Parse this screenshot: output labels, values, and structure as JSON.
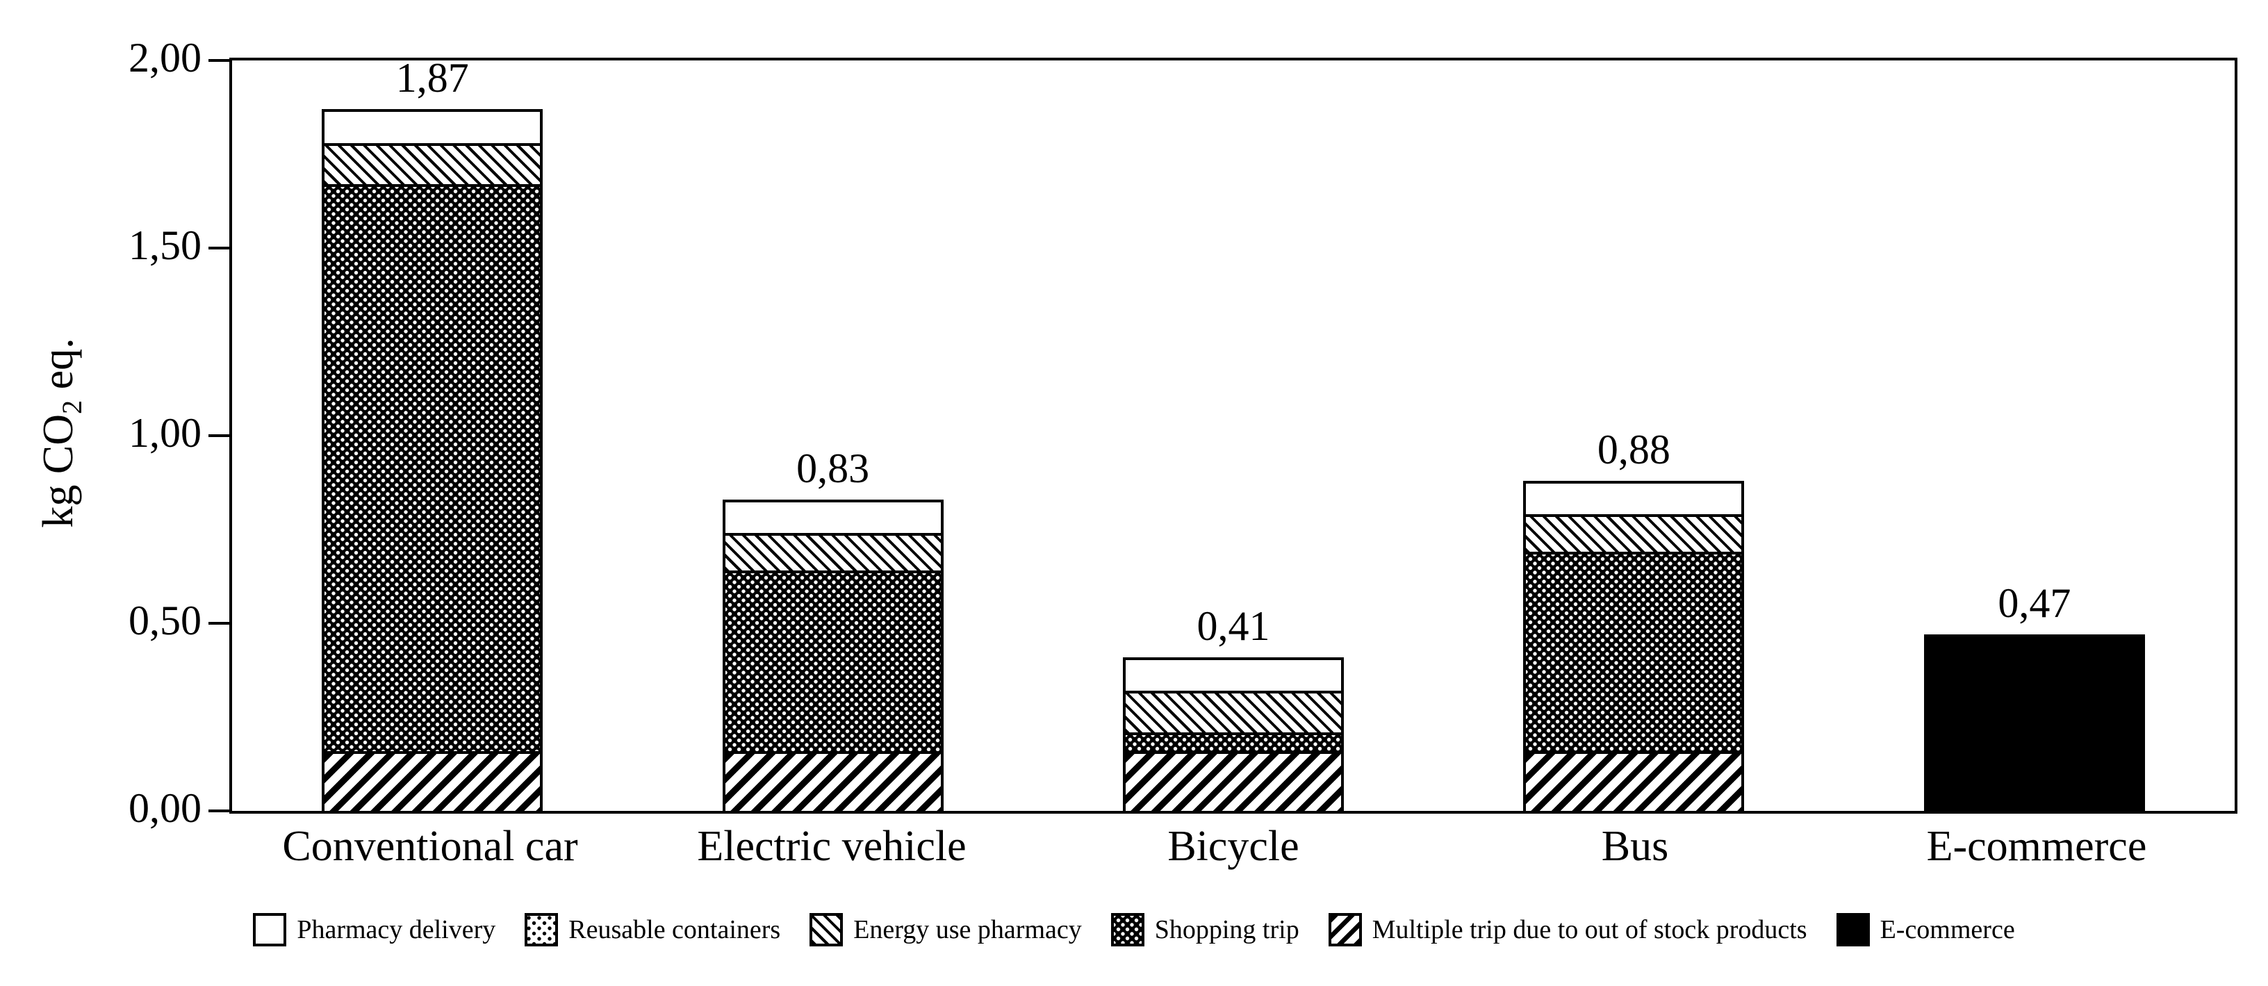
{
  "y_axis": {
    "title_prefix": "kg CO",
    "title_sub": "2",
    "title_suffix": " eq.",
    "ticks": [
      {
        "value": 0.0,
        "label": "0,00"
      },
      {
        "value": 0.5,
        "label": "0,50"
      },
      {
        "value": 1.0,
        "label": "1,00"
      },
      {
        "value": 1.5,
        "label": "1,50"
      },
      {
        "value": 2.0,
        "label": "2,00"
      }
    ]
  },
  "chart_data": {
    "type": "bar",
    "stacked": true,
    "categories": [
      "Conventional car",
      "Electric vehicle",
      "Bicycle",
      "Bus",
      "E-commerce"
    ],
    "series": [
      {
        "name": "Multiple trip due to out of stock products",
        "pattern": "stripes",
        "values": [
          0.16,
          0.16,
          0.16,
          0.16,
          0
        ]
      },
      {
        "name": "Shopping trip",
        "pattern": "dense-dots",
        "values": [
          1.51,
          0.48,
          0.05,
          0.53,
          0
        ]
      },
      {
        "name": "Energy use pharmacy",
        "pattern": "hatch",
        "values": [
          0.11,
          0.1,
          0.11,
          0.1,
          0
        ]
      },
      {
        "name": "Reusable containers",
        "pattern": "sparse-dots",
        "values": [
          0,
          0,
          0,
          0,
          0
        ]
      },
      {
        "name": "Pharmacy delivery",
        "pattern": "plain",
        "values": [
          0.09,
          0.09,
          0.09,
          0.09,
          0
        ]
      },
      {
        "name": "E-commerce",
        "pattern": "solid",
        "values": [
          0,
          0,
          0,
          0,
          0.47
        ]
      }
    ],
    "totals": [
      1.87,
      0.83,
      0.41,
      0.88,
      0.47
    ],
    "total_labels": [
      "1,87",
      "0,83",
      "0,41",
      "0,88",
      "0,47"
    ],
    "ylabel": "kg CO2 eq.",
    "ylim": [
      0,
      2.0
    ],
    "grid": false,
    "legend_position": "bottom",
    "decimal_separator": ","
  },
  "legend": {
    "items": [
      {
        "label": "Pharmacy delivery",
        "pattern": "plain"
      },
      {
        "label": "Reusable containers",
        "pattern": "sparse-dots"
      },
      {
        "label": "Energy use pharmacy",
        "pattern": "hatch"
      },
      {
        "label": "Shopping trip",
        "pattern": "dense-dots"
      },
      {
        "label": "Multiple trip due to out of stock products",
        "pattern": "stripes"
      },
      {
        "label": "E-commerce",
        "pattern": "solid"
      }
    ]
  },
  "colors": {
    "foreground": "#000000",
    "background": "#ffffff"
  }
}
